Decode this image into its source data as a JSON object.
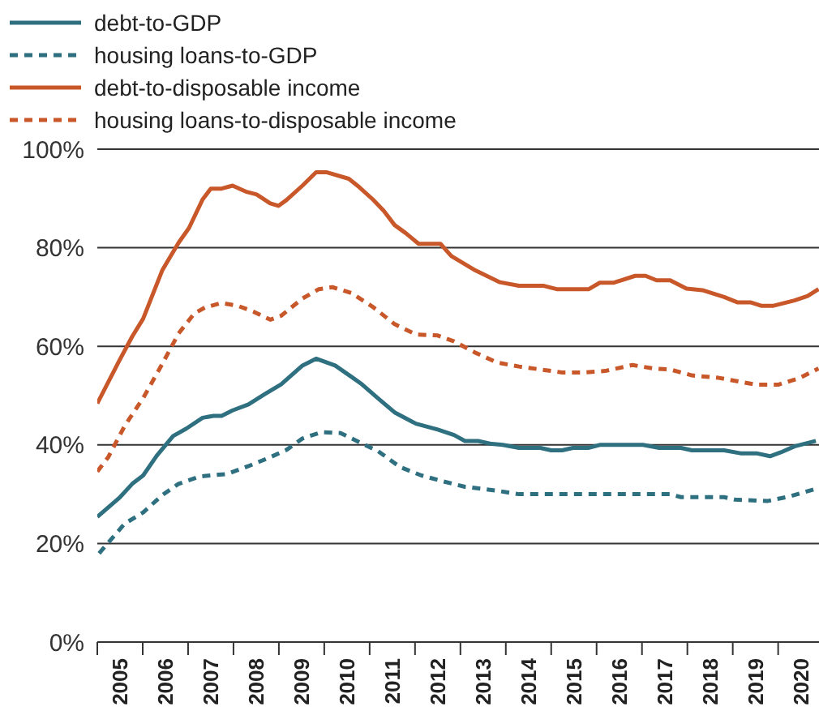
{
  "chart_data": {
    "type": "line",
    "xlim": [
      2005,
      2020.9
    ],
    "xticks": [
      {
        "value": 2005,
        "label": null
      },
      {
        "value": 2005.5,
        "label": "2005"
      },
      {
        "value": 2006,
        "label": null
      },
      {
        "value": 2006.5,
        "label": "2006"
      },
      {
        "value": 2007,
        "label": null
      },
      {
        "value": 2007.5,
        "label": "2007"
      },
      {
        "value": 2008,
        "label": null
      },
      {
        "value": 2008.5,
        "label": "2008"
      },
      {
        "value": 2009,
        "label": null
      },
      {
        "value": 2009.5,
        "label": "2009"
      },
      {
        "value": 2010,
        "label": null
      },
      {
        "value": 2010.5,
        "label": "2010"
      },
      {
        "value": 2011,
        "label": null
      },
      {
        "value": 2011.5,
        "label": "2011"
      },
      {
        "value": 2012,
        "label": null
      },
      {
        "value": 2012.5,
        "label": "2012"
      },
      {
        "value": 2013,
        "label": null
      },
      {
        "value": 2013.5,
        "label": "2013"
      },
      {
        "value": 2014,
        "label": null
      },
      {
        "value": 2014.5,
        "label": "2014"
      },
      {
        "value": 2015,
        "label": null
      },
      {
        "value": 2015.5,
        "label": "2015"
      },
      {
        "value": 2016,
        "label": null
      },
      {
        "value": 2016.5,
        "label": "2016"
      },
      {
        "value": 2017,
        "label": null
      },
      {
        "value": 2017.5,
        "label": "2017"
      },
      {
        "value": 2018,
        "label": null
      },
      {
        "value": 2018.5,
        "label": "2018"
      },
      {
        "value": 2019,
        "label": null
      },
      {
        "value": 2019.5,
        "label": "2019"
      },
      {
        "value": 2020,
        "label": null
      },
      {
        "value": 2020.5,
        "label": "2020"
      }
    ],
    "ylim": [
      0,
      100
    ],
    "yticks": [
      {
        "value": 0,
        "label": "0%"
      },
      {
        "value": 20,
        "label": "20%"
      },
      {
        "value": 40,
        "label": "40%"
      },
      {
        "value": 60,
        "label": "60%"
      },
      {
        "value": 80,
        "label": "80%"
      },
      {
        "value": 100,
        "label": "100%"
      }
    ],
    "grid": "y",
    "legend": "top left",
    "marker": "none",
    "series": [
      {
        "name": "debt-to-GDP",
        "color": "#2e6f80",
        "line_style": "solid",
        "x": [
          2005,
          2005.48,
          2005.77,
          2006.01,
          2006.31,
          2006.67,
          2006.96,
          2007.32,
          2007.56,
          2007.74,
          2007.98,
          2008.33,
          2008.69,
          2009.05,
          2009.52,
          2009.82,
          2010.24,
          2010.6,
          2010.83,
          2011.19,
          2011.55,
          2012.02,
          2012.5,
          2012.86,
          2013.1,
          2013.39,
          2013.69,
          2013.93,
          2014.29,
          2014.76,
          2015,
          2015.24,
          2015.48,
          2015.83,
          2016.07,
          2017.02,
          2017.38,
          2017.86,
          2018.1,
          2018.81,
          2019.17,
          2019.52,
          2019.82,
          2020.06,
          2020.36,
          2020.83
        ],
        "values": [
          25.4,
          29.2,
          32.1,
          33.8,
          37.8,
          41.8,
          43.3,
          45.5,
          45.9,
          45.9,
          47,
          48.2,
          50.3,
          52.3,
          56.1,
          57.5,
          56.1,
          53.8,
          52.3,
          49.4,
          46.6,
          44.3,
          43.1,
          42,
          40.8,
          40.8,
          40.2,
          40,
          39.4,
          39.4,
          38.9,
          38.9,
          39.4,
          39.4,
          40,
          40,
          39.4,
          39.4,
          38.9,
          38.9,
          38.3,
          38.3,
          37.7,
          38.5,
          39.7,
          40.8
        ]
      },
      {
        "name": "housing loans-to-GDP",
        "color": "#2e6f80",
        "line_style": "dashed",
        "x": [
          2005.04,
          2005.6,
          2006.01,
          2006.43,
          2006.79,
          2007.26,
          2007.86,
          2008.33,
          2008.81,
          2009.17,
          2009.52,
          2009.94,
          2010.36,
          2010.83,
          2011.19,
          2011.67,
          2012.14,
          2012.62,
          2013.1,
          2013.81,
          2014.29,
          2014.76,
          2015.95,
          2017.62,
          2017.86,
          2018.81,
          2019.05,
          2019.76,
          2020.24,
          2020.83
        ],
        "values": [
          18,
          24,
          26.3,
          29.8,
          32.1,
          33.6,
          34.1,
          35.7,
          37.5,
          39,
          41.3,
          42.6,
          42.4,
          40.3,
          38.7,
          35.5,
          33.8,
          32.6,
          31.5,
          30.7,
          30,
          30,
          30,
          30,
          29.4,
          29.4,
          28.9,
          28.6,
          29.5,
          31.1
        ]
      },
      {
        "name": "debt-to-disposable income",
        "color": "#c8572a",
        "line_style": "solid",
        "x": [
          2005,
          2005.48,
          2005.77,
          2006.01,
          2006.43,
          2006.79,
          2007.02,
          2007.32,
          2007.5,
          2007.74,
          2007.98,
          2008.27,
          2008.51,
          2008.81,
          2008.99,
          2009.17,
          2009.52,
          2009.82,
          2010.06,
          2010.54,
          2010.77,
          2011.07,
          2011.31,
          2011.55,
          2011.79,
          2012.08,
          2012.56,
          2012.8,
          2013.33,
          2013.87,
          2014.29,
          2014.82,
          2015.12,
          2015.83,
          2016.07,
          2016.37,
          2016.85,
          2017.08,
          2017.32,
          2017.62,
          2017.98,
          2018.33,
          2018.81,
          2019.11,
          2019.4,
          2019.64,
          2019.88,
          2020.36,
          2020.65,
          2020.89
        ],
        "values": [
          48.4,
          57,
          62,
          65.6,
          75.4,
          81,
          84,
          89.8,
          92,
          92,
          92.6,
          91.4,
          90.8,
          89,
          88.5,
          89.7,
          92.6,
          95.3,
          95.3,
          94,
          92.3,
          89.8,
          87.5,
          84.6,
          83,
          80.8,
          80.8,
          78.3,
          75.4,
          73,
          72.3,
          72.3,
          71.6,
          71.6,
          72.9,
          72.9,
          74.3,
          74.3,
          73.4,
          73.4,
          71.7,
          71.4,
          70,
          68.9,
          68.9,
          68.2,
          68.2,
          69.3,
          70.2,
          71.6
        ]
      },
      {
        "name": "housing loans-to-disposable income",
        "color": "#c8572a",
        "line_style": "dashed",
        "x": [
          2005,
          2005.24,
          2005.6,
          2006.01,
          2006.43,
          2006.79,
          2007.14,
          2007.38,
          2007.74,
          2008.1,
          2008.45,
          2008.81,
          2009.05,
          2009.52,
          2009.88,
          2010.18,
          2010.6,
          2011.07,
          2011.55,
          2012.02,
          2012.5,
          2012.86,
          2013.33,
          2013.81,
          2014.29,
          2014.76,
          2015.24,
          2015.71,
          2016.19,
          2016.79,
          2017.26,
          2017.62,
          2018.1,
          2018.69,
          2019.17,
          2019.52,
          2020,
          2020.48,
          2020.89
        ],
        "values": [
          34.6,
          37.5,
          43.8,
          49.5,
          56.4,
          62.6,
          66.7,
          67.9,
          68.8,
          68.2,
          67,
          65.4,
          66.2,
          69.7,
          71.6,
          72,
          70.8,
          68,
          64.5,
          62.4,
          62.2,
          61,
          58.7,
          56.7,
          55.9,
          55.3,
          54.7,
          54.7,
          55,
          56.2,
          55.5,
          55.3,
          54.1,
          53.6,
          52.8,
          52.2,
          52.2,
          53.6,
          55.5
        ]
      }
    ]
  }
}
